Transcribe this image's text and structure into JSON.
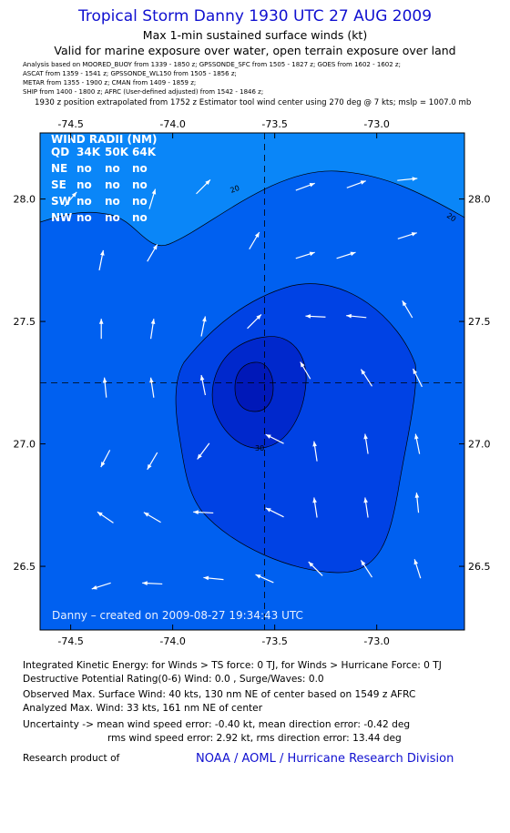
{
  "header": {
    "title": "Tropical Storm Danny 1930 UTC 27 AUG 2009",
    "subtitle1": "Max 1-min sustained surface winds (kt)",
    "subtitle2": "Valid for marine exposure over water, open terrain exposure over land",
    "analysis_lines": [
      "Analysis based on  MOORED_BUOY from 1339 - 1850 z;  GPSSONDE_SFC from 1505 - 1827 z;  GOES from 1602 - 1602 z;",
      "ASCAT from 1359 - 1541 z;  GPSSONDE_WL150 from 1505 - 1856 z;",
      "METAR from 1355 - 1900 z;  CMAN from 1409 - 1859 z;",
      "SHIP from 1400 - 1800 z;  AFRC  (User-defined adjusted)  from 1542 - 1846 z;"
    ],
    "position_note": "1930 z position extrapolated from 1752 z Estimator tool wind center using 270 deg @ 7 kts; mslp = 1007.0 mb"
  },
  "wind_radii": {
    "title": "WIND RADII (NM)",
    "header": [
      "QD",
      "34K",
      "50K",
      "64K"
    ],
    "rows": [
      [
        "NE",
        "no",
        "no",
        "no"
      ],
      [
        "SE",
        "no",
        "no",
        "no"
      ],
      [
        "SW",
        "no",
        "no",
        "no"
      ],
      [
        "NW",
        "no",
        "no",
        "no"
      ]
    ]
  },
  "stamp": "Danny  –  created on 2009-08-27 19:34:43 UTC",
  "contour_labels": [
    "20",
    "20",
    "30"
  ],
  "colors": {
    "band_lt20": "#0a86f8",
    "band_20_25": "#0060f0",
    "band_25_30": "#0042e4",
    "band_30_35": "#0028cc",
    "frame": "#000000",
    "arrow": "#ffffff",
    "title": "#1010d0"
  },
  "chart_data": {
    "type": "heatmap",
    "xlabel": "",
    "ylabel": "",
    "xlim": [
      -74.65,
      -72.57
    ],
    "ylim": [
      26.24,
      28.27
    ],
    "x_ticks": [
      "-74.5",
      "-74.0",
      "-73.5",
      "-73.0"
    ],
    "y_ticks": [
      "28.0",
      "27.5",
      "27.0",
      "26.5"
    ],
    "x_tick_values": [
      -74.5,
      -74.0,
      -73.5,
      -73.0
    ],
    "y_tick_values": [
      28.0,
      27.5,
      27.0,
      26.5
    ],
    "center": {
      "lon": -73.55,
      "lat": 27.25
    },
    "contour_levels": [
      20,
      25,
      30
    ],
    "wind_vectors": [
      {
        "lon": -74.5,
        "lat": 28.0,
        "u": 0.6,
        "v": 0.7
      },
      {
        "lon": -74.35,
        "lat": 27.75,
        "u": 0.2,
        "v": 1.0
      },
      {
        "lon": -74.1,
        "lat": 28.0,
        "u": 0.3,
        "v": 1.0
      },
      {
        "lon": -73.85,
        "lat": 28.05,
        "u": 0.7,
        "v": 0.7
      },
      {
        "lon": -74.1,
        "lat": 27.78,
        "u": 0.5,
        "v": 0.85
      },
      {
        "lon": -73.6,
        "lat": 27.83,
        "u": 0.5,
        "v": 0.85
      },
      {
        "lon": -73.35,
        "lat": 27.77,
        "u": 0.95,
        "v": 0.3
      },
      {
        "lon": -73.15,
        "lat": 27.77,
        "u": 0.95,
        "v": 0.3
      },
      {
        "lon": -72.85,
        "lat": 27.85,
        "u": 0.95,
        "v": 0.3
      },
      {
        "lon": -73.35,
        "lat": 28.05,
        "u": 0.95,
        "v": 0.35
      },
      {
        "lon": -73.1,
        "lat": 28.06,
        "u": 0.95,
        "v": 0.35
      },
      {
        "lon": -72.85,
        "lat": 28.08,
        "u": 1.0,
        "v": 0.1
      },
      {
        "lon": -73.6,
        "lat": 27.5,
        "u": 0.7,
        "v": 0.7
      },
      {
        "lon": -73.85,
        "lat": 27.48,
        "u": 0.2,
        "v": 1.0
      },
      {
        "lon": -74.1,
        "lat": 27.47,
        "u": 0.15,
        "v": 1.0
      },
      {
        "lon": -74.35,
        "lat": 27.47,
        "u": 0.0,
        "v": 1.0
      },
      {
        "lon": -74.33,
        "lat": 27.23,
        "u": -0.1,
        "v": 1.0
      },
      {
        "lon": -74.1,
        "lat": 27.23,
        "u": -0.15,
        "v": 1.0
      },
      {
        "lon": -73.85,
        "lat": 27.24,
        "u": -0.2,
        "v": 1.0
      },
      {
        "lon": -73.35,
        "lat": 27.3,
        "u": -0.5,
        "v": 0.85
      },
      {
        "lon": -73.3,
        "lat": 27.52,
        "u": -1.0,
        "v": 0.05
      },
      {
        "lon": -73.1,
        "lat": 27.52,
        "u": -1.0,
        "v": 0.1
      },
      {
        "lon": -72.85,
        "lat": 27.55,
        "u": -0.5,
        "v": 0.85
      },
      {
        "lon": -73.05,
        "lat": 27.27,
        "u": -0.55,
        "v": 0.85
      },
      {
        "lon": -72.8,
        "lat": 27.27,
        "u": -0.45,
        "v": 0.9
      },
      {
        "lon": -72.8,
        "lat": 27.0,
        "u": -0.2,
        "v": 1.0
      },
      {
        "lon": -73.05,
        "lat": 27.0,
        "u": -0.15,
        "v": 1.0
      },
      {
        "lon": -73.3,
        "lat": 26.97,
        "u": -0.15,
        "v": 1.0
      },
      {
        "lon": -73.5,
        "lat": 27.02,
        "u": -0.9,
        "v": 0.45
      },
      {
        "lon": -73.85,
        "lat": 26.97,
        "u": -0.6,
        "v": -0.8
      },
      {
        "lon": -74.1,
        "lat": 26.93,
        "u": -0.5,
        "v": -0.85
      },
      {
        "lon": -74.33,
        "lat": 26.94,
        "u": -0.45,
        "v": -0.85
      },
      {
        "lon": -74.33,
        "lat": 26.7,
        "u": -0.8,
        "v": 0.55
      },
      {
        "lon": -74.1,
        "lat": 26.7,
        "u": -0.85,
        "v": 0.5
      },
      {
        "lon": -73.85,
        "lat": 26.72,
        "u": -1.0,
        "v": 0.05
      },
      {
        "lon": -73.5,
        "lat": 26.72,
        "u": -0.9,
        "v": 0.45
      },
      {
        "lon": -73.3,
        "lat": 26.74,
        "u": -0.15,
        "v": 1.0
      },
      {
        "lon": -73.05,
        "lat": 26.74,
        "u": -0.15,
        "v": 1.0
      },
      {
        "lon": -72.8,
        "lat": 26.76,
        "u": -0.1,
        "v": 1.0
      },
      {
        "lon": -73.3,
        "lat": 26.49,
        "u": -0.7,
        "v": 0.7
      },
      {
        "lon": -73.05,
        "lat": 26.49,
        "u": -0.55,
        "v": 0.85
      },
      {
        "lon": -72.8,
        "lat": 26.49,
        "u": -0.3,
        "v": 0.95
      },
      {
        "lon": -73.55,
        "lat": 26.45,
        "u": -0.9,
        "v": 0.4
      },
      {
        "lon": -73.8,
        "lat": 26.45,
        "u": -1.0,
        "v": 0.1
      },
      {
        "lon": -74.1,
        "lat": 26.43,
        "u": -1.0,
        "v": 0.05
      },
      {
        "lon": -74.35,
        "lat": 26.42,
        "u": -0.95,
        "v": -0.3
      }
    ]
  },
  "footer": {
    "ike": "Integrated Kinetic Energy:  for Winds > TS force: 0 TJ,  for Winds > Hurricane Force: 0 TJ",
    "dpr": "Destructive Potential Rating(0-6)   Wind: 0.0 , Surge/Waves: 0.0",
    "observed_max": "Observed Max. Surface Wind: 40 kts, 130 nm NE of center based on 1549 z AFRC",
    "analyzed_max": "Analyzed Max. Wind: 33 kts, 161 nm NE of center",
    "uncertainty1": "Uncertainty -> mean wind speed error:  -0.40 kt,   mean direction error:  -0.42 deg",
    "uncertainty2": "rms wind speed error: 2.92 kt,   rms direction error: 13.44 deg",
    "research": "Research product of",
    "credit": "NOAA / AOML / Hurricane Research Division"
  }
}
